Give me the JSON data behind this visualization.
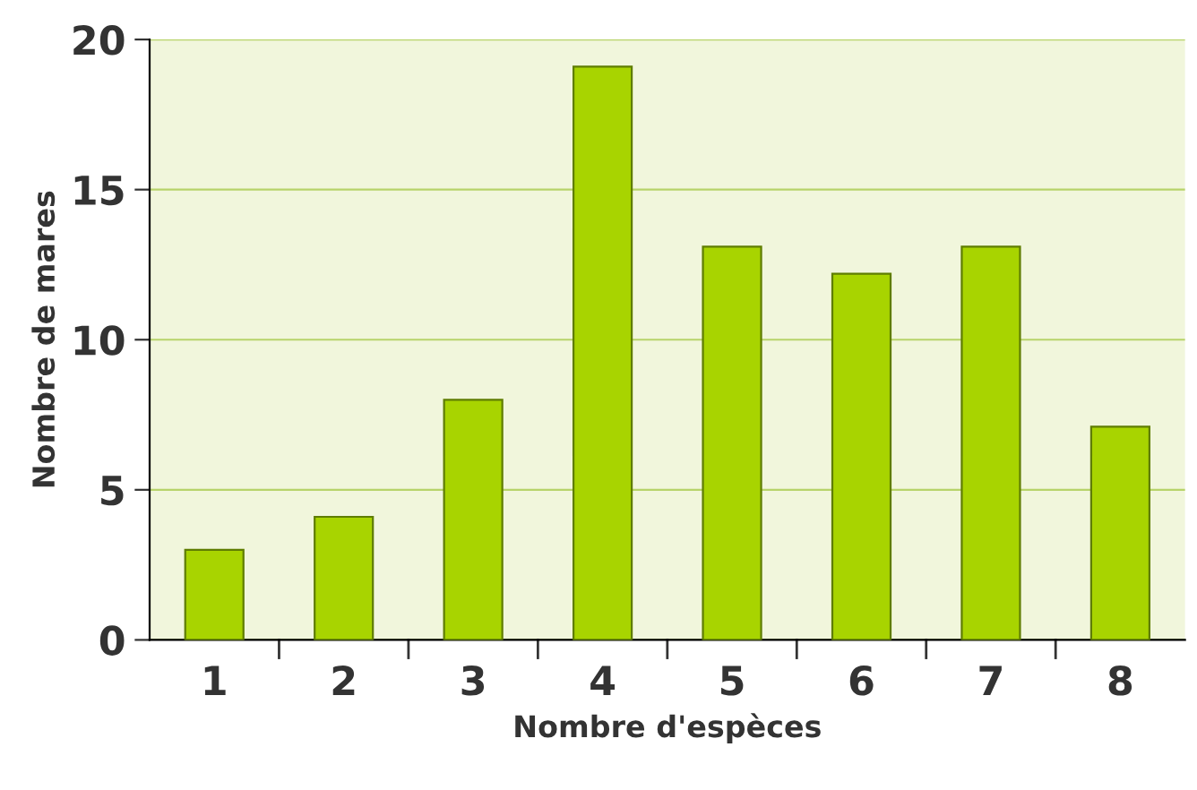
{
  "chart_data": {
    "type": "bar",
    "xlabel": "Nombre d'espèces",
    "ylabel": "Nombre de mares",
    "categories": [
      "1",
      "2",
      "3",
      "4",
      "5",
      "6",
      "7",
      "8"
    ],
    "values": [
      3,
      4.1,
      8,
      19.1,
      13.1,
      12.2,
      13.1,
      7.1
    ],
    "color": "#a8d400",
    "ylim": [
      0,
      20
    ],
    "yticks": [
      0,
      5,
      10,
      15,
      20
    ],
    "grid": "y"
  }
}
